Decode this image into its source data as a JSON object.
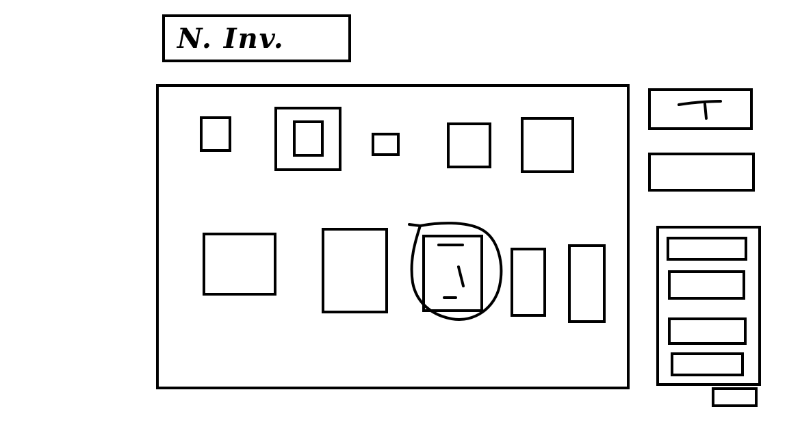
{
  "header": {
    "title": "N. Inv."
  },
  "colors": {
    "stroke": "#000000",
    "background": "#ffffff"
  },
  "inventory_grid": {
    "slots_row_1": 5,
    "slots_row_2": 5,
    "selected_slot": "row-2-slot-3"
  },
  "side_panel": {
    "top_slot_icon": "t-shaped-item-icon",
    "list_entries": 4
  }
}
